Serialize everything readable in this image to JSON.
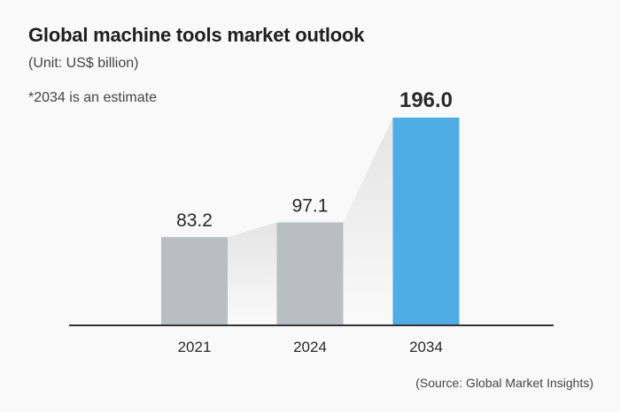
{
  "chart_data": {
    "type": "bar",
    "title": "Global machine tools market outlook",
    "subtitle": "(Unit: US$ billion)",
    "annotation": "*2034 is an estimate",
    "source": "(Source: Global Market Insights)",
    "categories": [
      "2021",
      "2024",
      "2034"
    ],
    "values": [
      83.2,
      97.1,
      196.0
    ],
    "labels": [
      "83.2",
      "97.1",
      "196.0"
    ],
    "highlight_index": 2,
    "colors": {
      "bar": "#b9bec1",
      "highlight": "#4eade4",
      "axis": "#333333",
      "connector": "#e6e6e6"
    },
    "xlabel": "",
    "ylabel": "",
    "ylim": [
      0,
      196.0
    ],
    "grid": false,
    "legend": "none"
  }
}
